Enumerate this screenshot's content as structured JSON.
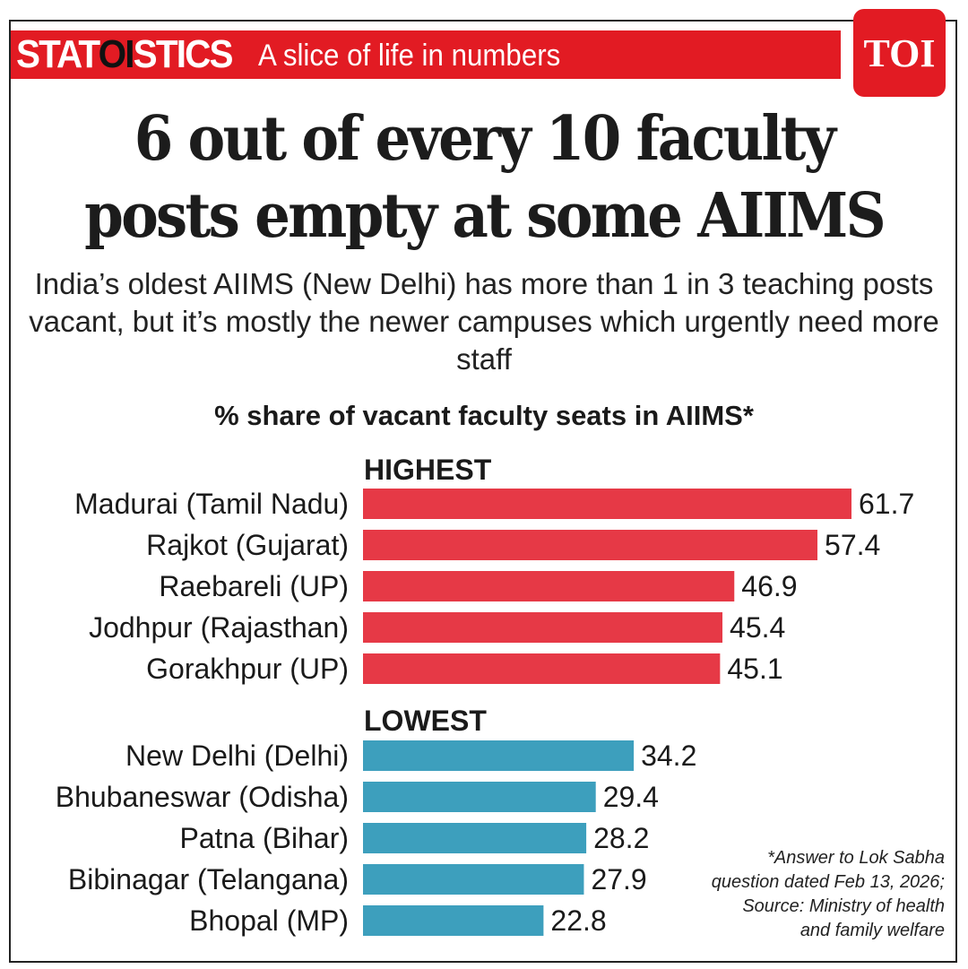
{
  "header": {
    "brand_pre": "STAT",
    "brand_mid": "OI",
    "brand_post": "STICS",
    "tagline": "A slice of life in numbers",
    "logo": "TOI"
  },
  "headline": {
    "line1": "6 out of every 10 faculty",
    "line2": "posts empty at some AIIMS"
  },
  "subtitle": "India’s oldest AIIMS (New Delhi) has more than 1 in 3 teaching posts vacant, but it’s mostly the newer campuses which urgently need more staff",
  "colors": {
    "brand_red": "#e21b23",
    "highest": "#e63946",
    "lowest": "#3d9fbd"
  },
  "chart_data": {
    "type": "bar",
    "orientation": "horizontal",
    "title": "% share of vacant faculty seats in AIIMS*",
    "groups": [
      {
        "name": "HIGHEST",
        "color": "#e63946",
        "categories": [
          "Madurai (Tamil Nadu)",
          "Rajkot (Gujarat)",
          "Raebareli (UP)",
          "Jodhpur (Rajasthan)",
          "Gorakhpur (UP)"
        ],
        "values": [
          61.7,
          57.4,
          46.9,
          45.4,
          45.1
        ],
        "labels": [
          "61.7",
          "57.4",
          "46.9",
          "45.4",
          "45.1"
        ]
      },
      {
        "name": "LOWEST",
        "color": "#3d9fbd",
        "categories": [
          "New Delhi (Delhi)",
          "Bhubaneswar (Odisha)",
          "Patna (Bihar)",
          "Bibinagar (Telangana)",
          "Bhopal (MP)"
        ],
        "values": [
          34.2,
          29.4,
          28.2,
          27.9,
          22.8
        ],
        "labels": [
          "34.2",
          "29.4",
          "28.2",
          "27.9",
          "22.8"
        ]
      }
    ],
    "xlim": [
      0,
      61.7
    ],
    "grid": false,
    "legend": "none"
  },
  "footnote": {
    "line1": "*Answer to Lok Sabha",
    "line2": "question dated Feb 13, 2026;",
    "line3": "Source: Ministry of health",
    "line4": "and family welfare"
  }
}
